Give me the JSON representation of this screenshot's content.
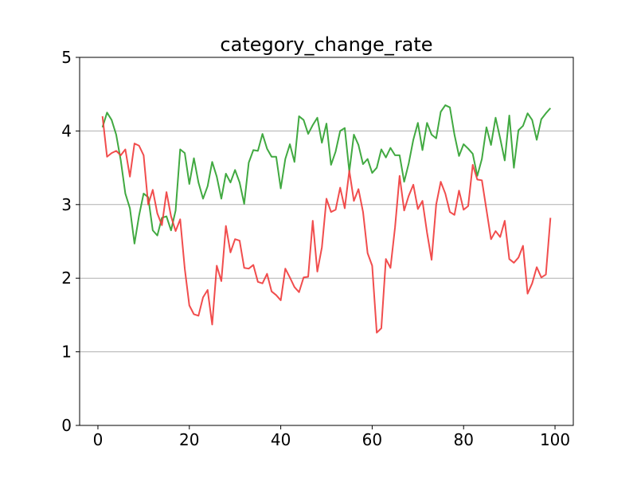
{
  "chart_data": {
    "type": "line",
    "title": "category_change_rate",
    "xlabel": "",
    "ylabel": "",
    "xlim": [
      -4,
      104
    ],
    "ylim": [
      0,
      5
    ],
    "x_ticks": [
      0,
      20,
      40,
      60,
      80,
      100
    ],
    "y_ticks": [
      0,
      1,
      2,
      3,
      4,
      5
    ],
    "grid": "horizontal",
    "x": [
      1,
      2,
      3,
      4,
      5,
      6,
      7,
      8,
      9,
      10,
      11,
      12,
      13,
      14,
      15,
      16,
      17,
      18,
      19,
      20,
      21,
      22,
      23,
      24,
      25,
      26,
      27,
      28,
      29,
      30,
      31,
      32,
      33,
      34,
      35,
      36,
      37,
      38,
      39,
      40,
      41,
      42,
      43,
      44,
      45,
      46,
      47,
      48,
      49,
      50,
      51,
      52,
      53,
      54,
      55,
      56,
      57,
      58,
      59,
      60,
      61,
      62,
      63,
      64,
      65,
      66,
      67,
      68,
      69,
      70,
      71,
      72,
      73,
      74,
      75,
      76,
      77,
      78,
      79,
      80,
      81,
      82,
      83,
      84,
      85,
      86,
      87,
      88,
      89,
      90,
      91,
      92,
      93,
      94,
      95,
      96,
      97,
      98,
      99
    ],
    "series": [
      {
        "color": "#2ca02c",
        "values": [
          4.05,
          4.25,
          4.15,
          3.95,
          3.6,
          3.15,
          2.95,
          2.47,
          2.85,
          3.15,
          3.1,
          2.65,
          2.58,
          2.82,
          2.84,
          2.65,
          2.92,
          3.75,
          3.7,
          3.28,
          3.63,
          3.3,
          3.08,
          3.25,
          3.58,
          3.38,
          3.08,
          3.42,
          3.3,
          3.47,
          3.3,
          3.01,
          3.57,
          3.74,
          3.73,
          3.96,
          3.76,
          3.65,
          3.65,
          3.22,
          3.62,
          3.82,
          3.58,
          4.2,
          4.15,
          3.96,
          4.08,
          4.18,
          3.84,
          4.1,
          3.54,
          3.72,
          4.0,
          4.04,
          3.45,
          3.95,
          3.81,
          3.55,
          3.62,
          3.43,
          3.5,
          3.75,
          3.64,
          3.77,
          3.67,
          3.67,
          3.31,
          3.56,
          3.88,
          4.11,
          3.74,
          4.11,
          3.95,
          3.9,
          4.26,
          4.35,
          4.32,
          3.95,
          3.66,
          3.82,
          3.76,
          3.69,
          3.39,
          3.62,
          4.05,
          3.81,
          4.18,
          3.9,
          3.6,
          4.21,
          3.5,
          4.01,
          4.07,
          4.24,
          4.15,
          3.88,
          4.16,
          4.24,
          4.31
        ]
      },
      {
        "color": "#f03a3a",
        "values": [
          4.2,
          3.65,
          3.7,
          3.73,
          3.67,
          3.75,
          3.38,
          3.83,
          3.8,
          3.67,
          3.0,
          3.2,
          2.88,
          2.72,
          3.17,
          2.84,
          2.64,
          2.8,
          2.13,
          1.63,
          1.51,
          1.49,
          1.74,
          1.84,
          1.37,
          2.17,
          1.96,
          2.71,
          2.35,
          2.53,
          2.51,
          2.14,
          2.13,
          2.18,
          1.95,
          1.93,
          2.06,
          1.82,
          1.77,
          1.7,
          2.13,
          2.01,
          1.88,
          1.81,
          2.01,
          2.02,
          2.78,
          2.09,
          2.42,
          3.08,
          2.9,
          2.93,
          3.23,
          2.95,
          3.46,
          3.05,
          3.21,
          2.9,
          2.34,
          2.17,
          1.26,
          1.32,
          2.26,
          2.14,
          2.69,
          3.39,
          2.92,
          3.12,
          3.27,
          2.94,
          3.05,
          2.62,
          2.25,
          3.0,
          3.31,
          3.15,
          2.9,
          2.86,
          3.19,
          2.93,
          2.98,
          3.54,
          3.34,
          3.33,
          2.93,
          2.53,
          2.64,
          2.56,
          2.78,
          2.26,
          2.21,
          2.28,
          2.44,
          1.79,
          1.93,
          2.15,
          2.01,
          2.05,
          2.82
        ]
      }
    ]
  }
}
